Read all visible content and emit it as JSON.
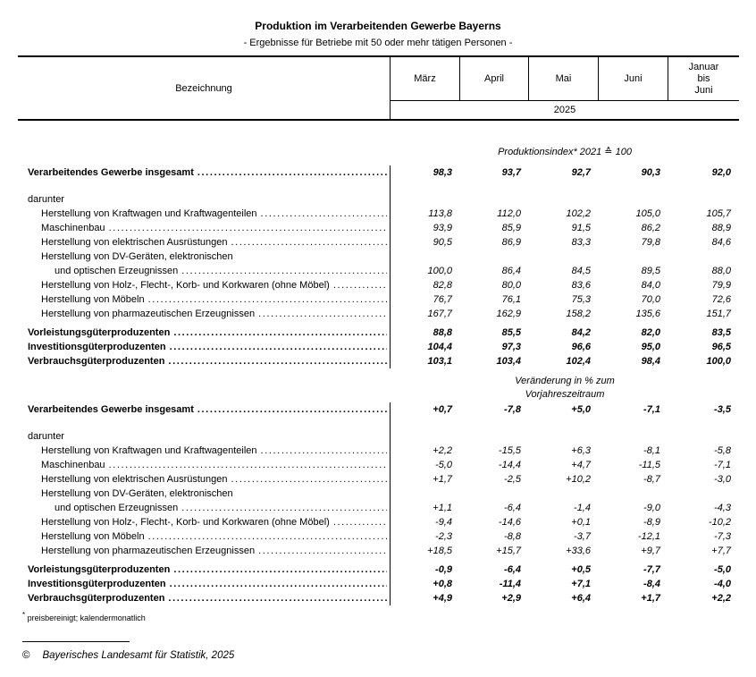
{
  "title": "Produktion im Verarbeitenden Gewerbe Bayerns",
  "subtitle": "- Ergebnisse für Betriebe mit 50 oder mehr tätigen Personen -",
  "table": {
    "label_header": "Bezeichnung",
    "month_columns": [
      "März",
      "April",
      "Mai",
      "Juni"
    ],
    "period_column_lines": [
      "Januar",
      "bis",
      "Juni"
    ],
    "year": "2025"
  },
  "sections": [
    {
      "heading_lines": [
        "Produktionsindex* 2021 ≙ 100"
      ],
      "rows": [
        {
          "label": "Verarbeitendes Gewerbe insgesamt",
          "indent": 0,
          "bold": true,
          "leaders": true,
          "values": [
            "98,3",
            "93,7",
            "92,7",
            "90,3",
            "92,0"
          ]
        },
        {
          "spacer": 14
        },
        {
          "label": "darunter",
          "indent": 0,
          "bold": false,
          "leaders": false,
          "values": null
        },
        {
          "label": "Herstellung von Kraftwagen und Kraftwagenteilen",
          "indent": 1,
          "bold": false,
          "leaders": true,
          "values": [
            "113,8",
            "112,0",
            "102,2",
            "105,0",
            "105,7"
          ]
        },
        {
          "label": "Maschinenbau",
          "indent": 1,
          "bold": false,
          "leaders": true,
          "values": [
            "93,9",
            "85,9",
            "91,5",
            "86,2",
            "88,9"
          ]
        },
        {
          "label": "Herstellung von elektrischen Ausrüstungen",
          "indent": 1,
          "bold": false,
          "leaders": true,
          "values": [
            "90,5",
            "86,9",
            "83,3",
            "79,8",
            "84,6"
          ]
        },
        {
          "label": "Herstellung von DV-Geräten, elektronischen",
          "indent": 1,
          "bold": false,
          "leaders": false,
          "values": null
        },
        {
          "label": "und optischen Erzeugnissen",
          "indent": 2,
          "bold": false,
          "leaders": true,
          "values": [
            "100,0",
            "86,4",
            "84,5",
            "89,5",
            "88,0"
          ]
        },
        {
          "label": "Herstellung von Holz-, Flecht-, Korb- und Korkwaren (ohne Möbel)",
          "indent": 1,
          "bold": false,
          "leaders": true,
          "values": [
            "82,8",
            "80,0",
            "83,6",
            "84,0",
            "79,9"
          ]
        },
        {
          "label": "Herstellung von Möbeln",
          "indent": 1,
          "bold": false,
          "leaders": true,
          "values": [
            "76,7",
            "76,1",
            "75,3",
            "70,0",
            "72,6"
          ]
        },
        {
          "label": "Herstellung von pharmazeutischen Erzeugnissen",
          "indent": 1,
          "bold": false,
          "leaders": true,
          "values": [
            "167,7",
            "162,9",
            "158,2",
            "135,6",
            "151,7"
          ]
        },
        {
          "spacer": 5
        },
        {
          "label": "Vorleistungsgüterproduzenten",
          "indent": 0,
          "bold": true,
          "leaders": true,
          "values": [
            "88,8",
            "85,5",
            "84,2",
            "82,0",
            "83,5"
          ]
        },
        {
          "label": "Investitionsgüterproduzenten",
          "indent": 0,
          "bold": true,
          "leaders": true,
          "values": [
            "104,4",
            "97,3",
            "96,6",
            "95,0",
            "96,5"
          ]
        },
        {
          "label": "Verbrauchsgüterproduzenten",
          "indent": 0,
          "bold": true,
          "leaders": true,
          "values": [
            "103,1",
            "103,4",
            "102,4",
            "98,4",
            "100,0"
          ]
        }
      ]
    },
    {
      "heading_lines": [
        "Veränderung in % zum",
        "Vorjahreszeitraum"
      ],
      "rows": [
        {
          "label": "Verarbeitendes Gewerbe insgesamt",
          "indent": 0,
          "bold": true,
          "leaders": true,
          "values": [
            "+0,7",
            "-7,8",
            "+5,0",
            "-7,1",
            "-3,5"
          ]
        },
        {
          "spacer": 14
        },
        {
          "label": "darunter",
          "indent": 0,
          "bold": false,
          "leaders": false,
          "values": null
        },
        {
          "label": "Herstellung von Kraftwagen und Kraftwagenteilen",
          "indent": 1,
          "bold": false,
          "leaders": true,
          "values": [
            "+2,2",
            "-15,5",
            "+6,3",
            "-8,1",
            "-5,8"
          ]
        },
        {
          "label": "Maschinenbau",
          "indent": 1,
          "bold": false,
          "leaders": true,
          "values": [
            "-5,0",
            "-14,4",
            "+4,7",
            "-11,5",
            "-7,1"
          ]
        },
        {
          "label": "Herstellung von elektrischen Ausrüstungen",
          "indent": 1,
          "bold": false,
          "leaders": true,
          "values": [
            "+1,7",
            "-2,5",
            "+10,2",
            "-8,7",
            "-3,0"
          ]
        },
        {
          "label": "Herstellung von DV-Geräten, elektronischen",
          "indent": 1,
          "bold": false,
          "leaders": false,
          "values": null
        },
        {
          "label": "und optischen Erzeugnissen",
          "indent": 2,
          "bold": false,
          "leaders": true,
          "values": [
            "+1,1",
            "-6,4",
            "-1,4",
            "-9,0",
            "-4,3"
          ]
        },
        {
          "label": "Herstellung von Holz-, Flecht-, Korb- und Korkwaren (ohne Möbel)",
          "indent": 1,
          "bold": false,
          "leaders": true,
          "values": [
            "-9,4",
            "-14,6",
            "+0,1",
            "-8,9",
            "-10,2"
          ]
        },
        {
          "label": "Herstellung von Möbeln",
          "indent": 1,
          "bold": false,
          "leaders": true,
          "values": [
            "-2,3",
            "-8,8",
            "-3,7",
            "-12,1",
            "-7,3"
          ]
        },
        {
          "label": "Herstellung von pharmazeutischen Erzeugnissen",
          "indent": 1,
          "bold": false,
          "leaders": true,
          "values": [
            "+18,5",
            "+15,7",
            "+33,6",
            "+9,7",
            "+7,7"
          ]
        },
        {
          "spacer": 5
        },
        {
          "label": "Vorleistungsgüterproduzenten",
          "indent": 0,
          "bold": true,
          "leaders": true,
          "values": [
            "-0,9",
            "-6,4",
            "+0,5",
            "-7,7",
            "-5,0"
          ]
        },
        {
          "label": "Investitionsgüterproduzenten",
          "indent": 0,
          "bold": true,
          "leaders": true,
          "values": [
            "+0,8",
            "-11,4",
            "+7,1",
            "-8,4",
            "-4,0"
          ]
        },
        {
          "label": "Verbrauchsgüterproduzenten",
          "indent": 0,
          "bold": true,
          "leaders": true,
          "values": [
            "+4,9",
            "+2,9",
            "+6,4",
            "+1,7",
            "+2,2"
          ]
        }
      ]
    }
  ],
  "footnote": {
    "marker": "*",
    "text": "preisbereinigt; kalendermonatlich"
  },
  "copyright": {
    "symbol": "©",
    "text": "Bayerisches Landesamt für Statistik, 2025"
  }
}
